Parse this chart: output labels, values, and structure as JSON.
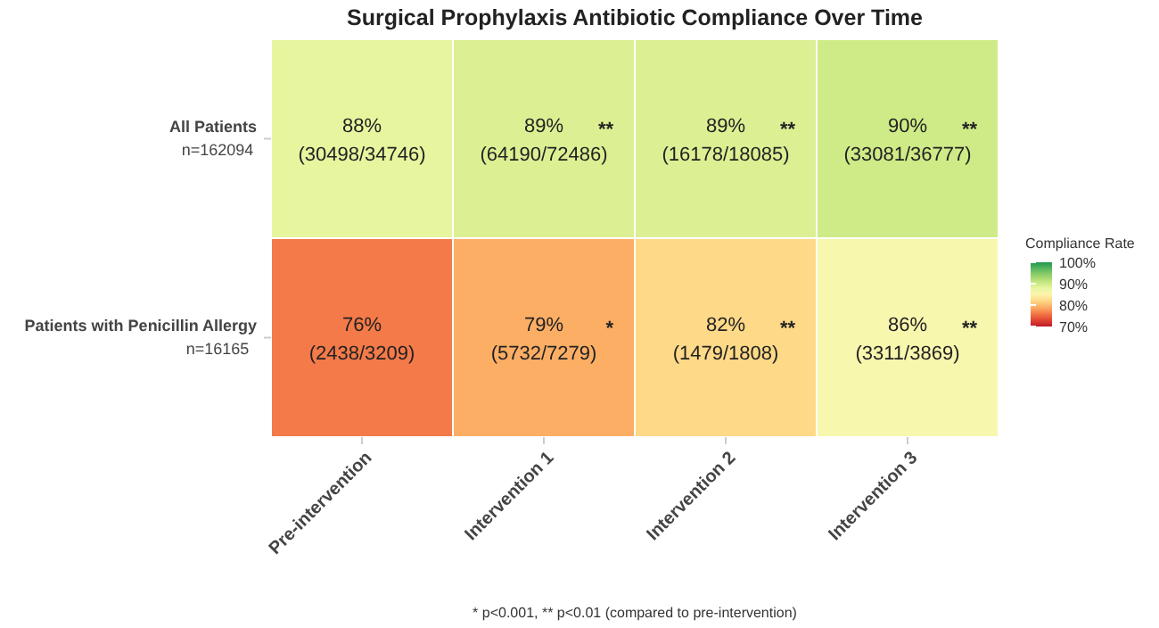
{
  "chart_data": {
    "type": "heatmap",
    "title": "Surgical Prophylaxis Antibiotic Compliance Over Time",
    "categories": [
      "Pre-intervention",
      "Intervention 1",
      "Intervention 2",
      "Intervention 3"
    ],
    "y_categories": [
      "All Patients\nn=162094",
      "Patients with Penicillin Allergy\nn=16165"
    ],
    "cells": [
      [
        88,
        89,
        89,
        90
      ],
      [
        76,
        79,
        82,
        86
      ]
    ],
    "cell_labels": [
      [
        "88%\n(30498/34746)",
        "89%\n(64190/72486)\n**",
        "89%\n(16178/18085)\n**",
        "90%\n(33081/36777)\n**"
      ],
      [
        "76%\n(2438/3209)",
        "79%\n(5732/7279)\n*",
        "82%\n(1479/1808)\n**",
        "86%\n(3311/3869)\n**"
      ]
    ],
    "clabel": "Compliance Rate",
    "clim": [
      70,
      100
    ],
    "cticks": [
      {
        "value": 70,
        "label": "70%"
      },
      {
        "value": 80,
        "label": "80%"
      },
      {
        "value": 90,
        "label": "90%"
      },
      {
        "value": 100,
        "label": "100%"
      }
    ],
    "annotations": [
      "* p<0.001, ** p<0.01 (compared to pre-intervention)"
    ]
  }
}
